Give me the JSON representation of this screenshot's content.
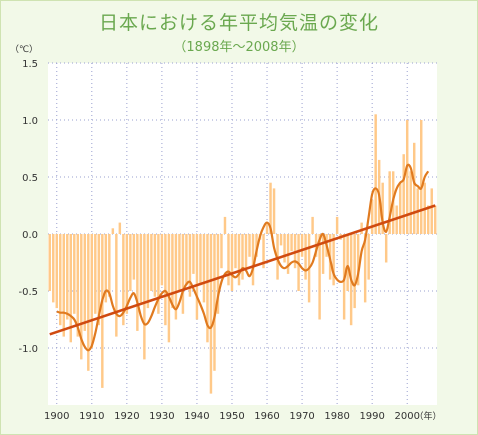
{
  "title": "日本における年平均気温の変化",
  "subtitle": "（1898年～2008年）",
  "chart_data": {
    "type": "bar",
    "xlabel": "",
    "unit_y": "（℃）",
    "unit_x": "（年）",
    "xlim": [
      1898,
      2008
    ],
    "ylim": [
      -1.5,
      1.5
    ],
    "y_ticks": [
      -1.0,
      -0.5,
      0.0,
      0.5,
      1.0,
      1.5
    ],
    "y_tick_labels": [
      "-1.0",
      "-0.5",
      "0.0",
      "0.5",
      "1.0",
      "1.5"
    ],
    "x_ticks": [
      1900,
      1910,
      1920,
      1930,
      1940,
      1950,
      1960,
      1970,
      1980,
      1990,
      2000
    ],
    "grid": true,
    "colors": {
      "bars": "#ffc989",
      "smooth": "#e07a1f",
      "trend": "#d04a10",
      "grid": "#9aa0cf",
      "plot_bg": "#ffffff"
    },
    "years": [
      1898,
      1899,
      1900,
      1901,
      1902,
      1903,
      1904,
      1905,
      1906,
      1907,
      1908,
      1909,
      1910,
      1911,
      1912,
      1913,
      1914,
      1915,
      1916,
      1917,
      1918,
      1919,
      1920,
      1921,
      1922,
      1923,
      1924,
      1925,
      1926,
      1927,
      1928,
      1929,
      1930,
      1931,
      1932,
      1933,
      1934,
      1935,
      1936,
      1937,
      1938,
      1939,
      1940,
      1941,
      1942,
      1943,
      1944,
      1945,
      1946,
      1947,
      1948,
      1949,
      1950,
      1951,
      1952,
      1953,
      1954,
      1955,
      1956,
      1957,
      1958,
      1959,
      1960,
      1961,
      1962,
      1963,
      1964,
      1965,
      1966,
      1967,
      1968,
      1969,
      1970,
      1971,
      1972,
      1973,
      1974,
      1975,
      1976,
      1977,
      1978,
      1979,
      1980,
      1981,
      1982,
      1983,
      1984,
      1985,
      1986,
      1987,
      1988,
      1989,
      1990,
      1991,
      1992,
      1993,
      1994,
      1995,
      1996,
      1997,
      1998,
      1999,
      2000,
      2001,
      2002,
      2003,
      2004,
      2005,
      2006,
      2007,
      2008
    ],
    "series": [
      {
        "type": "bar",
        "values": [
          -0.5,
          -0.6,
          -0.65,
          -0.8,
          -0.9,
          -0.75,
          -0.95,
          -0.7,
          -0.9,
          -1.1,
          -0.85,
          -1.2,
          -1.0,
          -0.7,
          -0.8,
          -1.35,
          -0.6,
          -0.55,
          0.05,
          -0.9,
          0.1,
          -0.8,
          -0.7,
          -0.5,
          -0.4,
          -0.85,
          -0.6,
          -1.1,
          -0.65,
          -0.5,
          -0.55,
          -0.7,
          -0.45,
          -0.8,
          -0.95,
          -0.65,
          -0.75,
          -0.5,
          -0.7,
          -0.45,
          -0.55,
          -0.35,
          -0.75,
          -0.45,
          -0.6,
          -0.95,
          -1.4,
          -1.2,
          -0.7,
          -0.3,
          0.15,
          -0.45,
          -0.5,
          -0.3,
          -0.45,
          -0.4,
          -0.3,
          -0.2,
          -0.45,
          -0.2,
          -0.05,
          -0.3,
          0.1,
          0.45,
          0.4,
          -0.4,
          -0.1,
          -0.25,
          -0.35,
          -0.15,
          -0.3,
          -0.5,
          -0.2,
          -0.4,
          -0.6,
          0.15,
          -0.2,
          -0.75,
          -0.35,
          -0.2,
          -0.4,
          -0.45,
          0.15,
          -0.05,
          -0.75,
          -0.5,
          -0.8,
          -0.65,
          -0.45,
          0.1,
          -0.6,
          -0.4,
          0.3,
          1.05,
          0.65,
          0.45,
          -0.25,
          0.55,
          0.55,
          0.25,
          0.45,
          0.7,
          1.0,
          0.55,
          0.8,
          0.4,
          1.0,
          0.45,
          0.25,
          0.4,
          0.25
        ]
      }
    ],
    "smoothed": {
      "years": [
        1900,
        1901,
        1902,
        1903,
        1904,
        1905,
        1906,
        1907,
        1908,
        1909,
        1910,
        1911,
        1912,
        1913,
        1914,
        1915,
        1916,
        1917,
        1918,
        1919,
        1920,
        1921,
        1922,
        1923,
        1924,
        1925,
        1926,
        1927,
        1928,
        1929,
        1930,
        1931,
        1932,
        1933,
        1934,
        1935,
        1936,
        1937,
        1938,
        1939,
        1940,
        1941,
        1942,
        1943,
        1944,
        1945,
        1946,
        1947,
        1948,
        1949,
        1950,
        1951,
        1952,
        1953,
        1954,
        1955,
        1956,
        1957,
        1958,
        1959,
        1960,
        1961,
        1962,
        1963,
        1964,
        1965,
        1966,
        1967,
        1968,
        1969,
        1970,
        1971,
        1972,
        1973,
        1974,
        1975,
        1976,
        1977,
        1978,
        1979,
        1980,
        1981,
        1982,
        1983,
        1984,
        1985,
        1986,
        1987,
        1988,
        1989,
        1990,
        1991,
        1992,
        1993,
        1994,
        1995,
        1996,
        1997,
        1998,
        1999,
        2000,
        2001,
        2002,
        2003,
        2004,
        2005,
        2006
      ],
      "values": [
        -0.68,
        -0.69,
        -0.69,
        -0.7,
        -0.72,
        -0.75,
        -0.82,
        -0.92,
        -0.99,
        -1.02,
        -0.98,
        -0.87,
        -0.72,
        -0.58,
        -0.5,
        -0.52,
        -0.63,
        -0.7,
        -0.72,
        -0.69,
        -0.63,
        -0.56,
        -0.52,
        -0.6,
        -0.72,
        -0.79,
        -0.78,
        -0.72,
        -0.64,
        -0.57,
        -0.52,
        -0.5,
        -0.55,
        -0.62,
        -0.66,
        -0.6,
        -0.5,
        -0.44,
        -0.42,
        -0.48,
        -0.55,
        -0.62,
        -0.7,
        -0.8,
        -0.82,
        -0.73,
        -0.55,
        -0.42,
        -0.35,
        -0.33,
        -0.36,
        -0.38,
        -0.35,
        -0.3,
        -0.32,
        -0.37,
        -0.3,
        -0.15,
        -0.02,
        0.06,
        0.1,
        0.05,
        -0.12,
        -0.22,
        -0.28,
        -0.3,
        -0.28,
        -0.25,
        -0.24,
        -0.26,
        -0.3,
        -0.32,
        -0.3,
        -0.25,
        -0.15,
        -0.05,
        0.0,
        -0.1,
        -0.22,
        -0.35,
        -0.4,
        -0.42,
        -0.4,
        -0.28,
        -0.4,
        -0.45,
        -0.35,
        -0.15,
        -0.05,
        0.15,
        0.35,
        0.4,
        0.34,
        0.1,
        0.02,
        0.15,
        0.3,
        0.4,
        0.45,
        0.48,
        0.6,
        0.58,
        0.45,
        0.42,
        0.4,
        0.5,
        0.55
      ]
    },
    "trend": {
      "x": [
        1898,
        2008
      ],
      "y": [
        -0.88,
        0.25
      ]
    }
  }
}
